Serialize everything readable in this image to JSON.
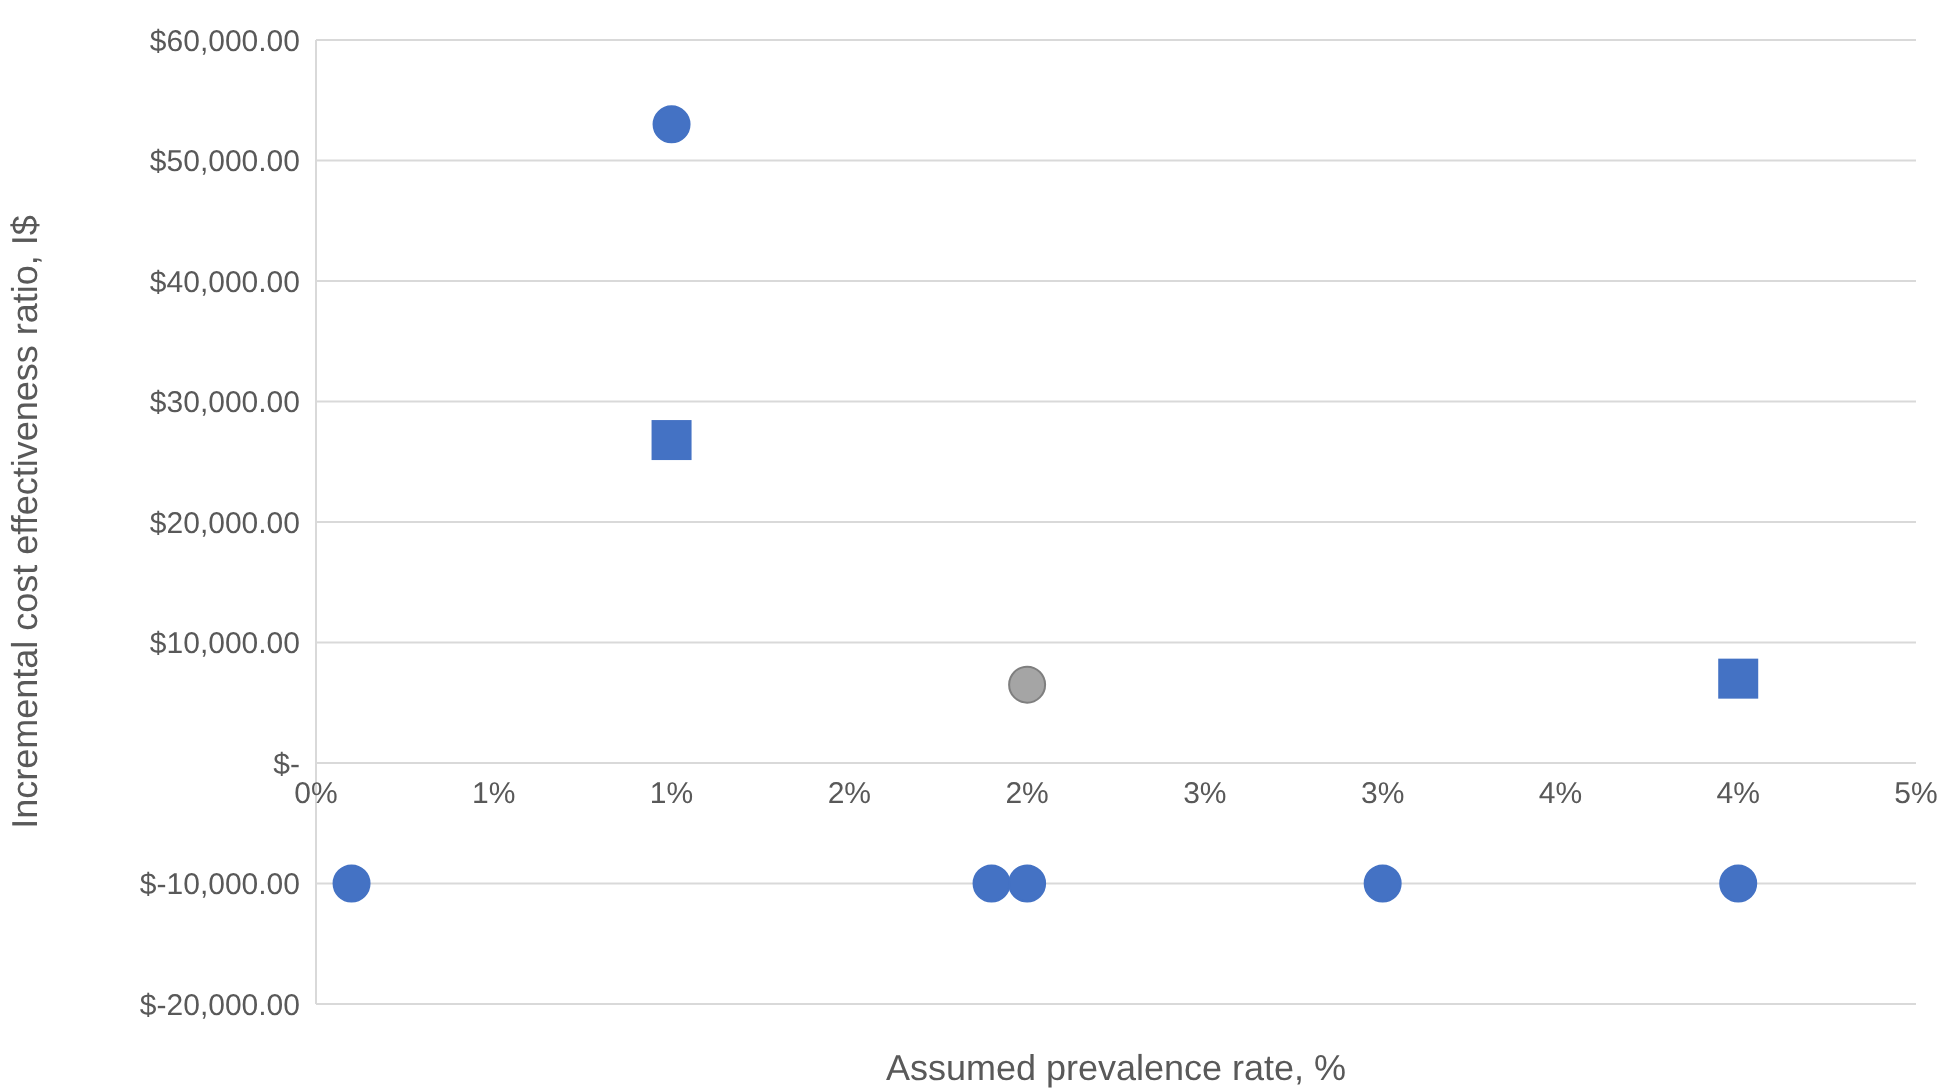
{
  "chart_data": {
    "type": "scatter",
    "xlabel": "Assumed prevalence rate, %",
    "ylabel": "Incremental cost effectiveness ratio, I$",
    "xlim": [
      0,
      4.5
    ],
    "xticks": [
      {
        "value": 0,
        "label": "0%"
      },
      {
        "value": 0.5,
        "label": "1%"
      },
      {
        "value": 1,
        "label": "1%"
      },
      {
        "value": 1.5,
        "label": "2%"
      },
      {
        "value": 2,
        "label": "2%"
      },
      {
        "value": 2.5,
        "label": "3%"
      },
      {
        "value": 3,
        "label": "3%"
      },
      {
        "value": 3.5,
        "label": "4%"
      },
      {
        "value": 4,
        "label": "4%"
      },
      {
        "value": 4.5,
        "label": "5%"
      }
    ],
    "ylim": [
      -20000,
      60000
    ],
    "yticks": [
      {
        "value": -20000,
        "label": "$-20,000.00"
      },
      {
        "value": -10000,
        "label": "$-10,000.00"
      },
      {
        "value": 0,
        "label": "$-"
      },
      {
        "value": 10000,
        "label": "$10,000.00"
      },
      {
        "value": 20000,
        "label": "$20,000.00"
      },
      {
        "value": 30000,
        "label": "$30,000.00"
      },
      {
        "value": 40000,
        "label": "$40,000.00"
      },
      {
        "value": 50000,
        "label": "$50,000.00"
      },
      {
        "value": 60000,
        "label": "$60,000.00"
      }
    ],
    "grid": "y",
    "legend": false,
    "series": [
      {
        "color": "#4472c4",
        "marker": "circle",
        "x": [
          1,
          0.1,
          1.9,
          2,
          3,
          4
        ],
        "values": [
          53000,
          -10000,
          -10000,
          -10000,
          -10000,
          -10000
        ]
      },
      {
        "color": "#4472c4",
        "marker": "square",
        "x": [
          1,
          4
        ],
        "values": [
          26800,
          7000
        ]
      },
      {
        "color": "#a5a5a5",
        "marker": "circle",
        "x": [
          2
        ],
        "values": [
          6500
        ]
      }
    ]
  }
}
